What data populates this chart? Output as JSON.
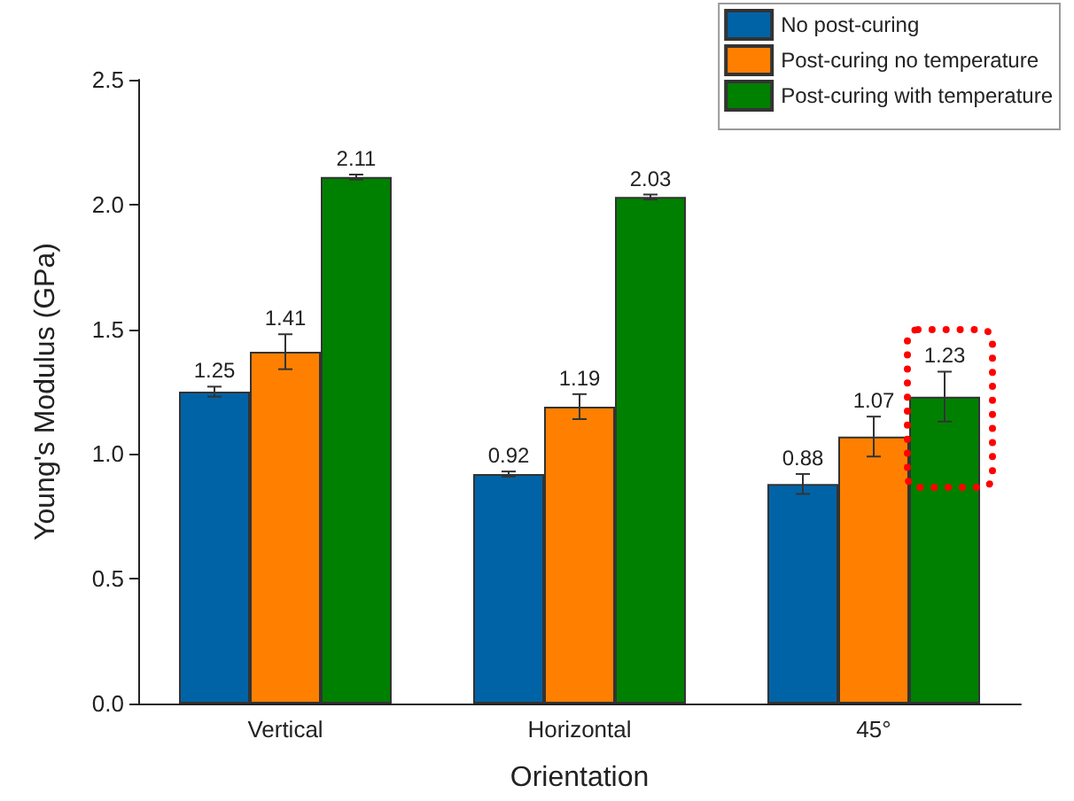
{
  "chart_data": {
    "type": "bar",
    "xlabel": "Orientation",
    "ylabel": "Young's Modulus (GPa)",
    "categories": [
      "Vertical",
      "Horizontal",
      "45°"
    ],
    "series": [
      {
        "name": "No post-curing",
        "color": "#0063a6",
        "values": [
          1.25,
          0.92,
          0.88
        ],
        "errors": [
          0.02,
          0.01,
          0.04
        ]
      },
      {
        "name": "Post-curing no temperature",
        "color": "#ff8000",
        "values": [
          1.41,
          1.19,
          1.07
        ],
        "errors": [
          0.07,
          0.05,
          0.08
        ]
      },
      {
        "name": "Post-curing with temperature",
        "color": "#008000",
        "values": [
          2.11,
          2.03,
          1.23
        ],
        "errors": [
          0.01,
          0.01,
          0.1
        ]
      }
    ],
    "ylim": [
      0,
      2.5
    ],
    "yticks": [
      {
        "value": 0,
        "label": "0.0"
      },
      0.5,
      {
        "value": 1,
        "label": "1.0"
      },
      1.5,
      {
        "value": 2,
        "label": "2.0"
      },
      2.5
    ],
    "data_labels": true,
    "legend": "top right",
    "grid": false
  }
}
